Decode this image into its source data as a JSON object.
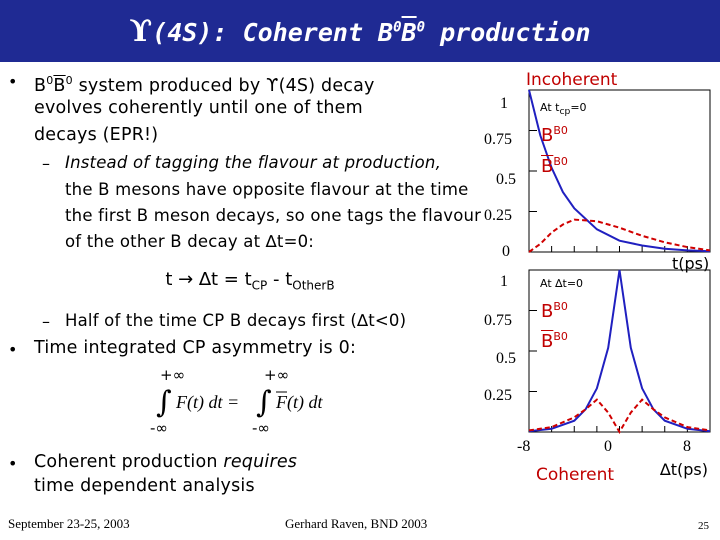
{
  "slide": {
    "title_prefix": "ϒ",
    "title_main": "(4S): Coherent B",
    "title_sup1": "0",
    "title_bbar": "B",
    "title_sup2": "0",
    "title_rest": " production"
  },
  "bullets": {
    "b1_line1_pre": "B",
    "b1_line1_sup1": "0",
    "b1_line1_bbar": "B",
    "b1_line1_sup2": "0",
    "b1_line1_rest": " system produced by ϒ(4S) decay",
    "b1_line2": "evolves coherently until one of them",
    "b1_line3": "decays (EPR!)",
    "sub1_line1": "Instead of tagging the flavour at production,",
    "sub1_line2": "the B mesons have opposite flavour at the time",
    "sub1_line3": "the first B meson decays, so one tags the flavour",
    "sub1_line4": "of the other  B decay at ∆t=0:",
    "equation": "t → ∆t = t",
    "eq_sub1": "CP",
    "eq_mid": " - t",
    "eq_sub2": "OtherB",
    "sub2": "Half of the time CP B decays first (∆t<0)",
    "b2": "Time integrated CP asymmetry is 0:",
    "int_upper1": "+∞",
    "int_upper2": "+∞",
    "int_lower1": "-∞",
    "int_lower2": "-∞",
    "b3_line1_pre": "Coherent production ",
    "b3_line1_em": "requires",
    "b3_line2": "time dependent analysis"
  },
  "footer": {
    "date": "September 23-25, 2003",
    "author": "Gerhard Raven, BND 2003",
    "page": "25"
  },
  "chart_data": [
    {
      "type": "line",
      "title": "Incoherent",
      "annotation": "At t",
      "annotation_sub": "cp",
      "annotation_rest": "=0",
      "xlabel": "t(ps)",
      "ylim": [
        0,
        1
      ],
      "yticks": [
        "1",
        "0.75",
        "0.5",
        "0.25",
        "0"
      ],
      "series": [
        {
          "name": "B0",
          "color": "#2020c0",
          "style": "solid",
          "x": [
            0,
            0.5,
            1,
            1.5,
            2,
            3,
            4,
            5,
            6,
            7,
            8
          ],
          "values": [
            1.0,
            0.72,
            0.52,
            0.37,
            0.27,
            0.14,
            0.07,
            0.04,
            0.02,
            0.01,
            0.005
          ]
        },
        {
          "name": "B0bar",
          "color": "#d00000",
          "style": "dashed",
          "x": [
            0,
            0.5,
            1,
            1.5,
            2,
            3,
            4,
            5,
            6,
            7,
            8
          ],
          "values": [
            0.0,
            0.05,
            0.12,
            0.17,
            0.2,
            0.19,
            0.15,
            0.1,
            0.06,
            0.03,
            0.01
          ]
        }
      ],
      "legend": [
        "B0",
        "B0"
      ]
    },
    {
      "type": "line",
      "annotation": "At ∆t=0",
      "xlabel": "∆t(ps)",
      "bottom_label": "Coherent",
      "xlim": [
        -8,
        8
      ],
      "xticks": [
        "-8",
        "0",
        "8"
      ],
      "ylim": [
        0,
        1
      ],
      "yticks": [
        "1",
        "0.75",
        "0.5",
        "0.25"
      ],
      "series": [
        {
          "name": "B0",
          "color": "#2020c0",
          "style": "solid",
          "x": [
            -8,
            -6,
            -4,
            -3,
            -2,
            -1,
            0,
            1,
            2,
            3,
            4,
            6,
            8
          ],
          "values": [
            0.005,
            0.02,
            0.07,
            0.14,
            0.27,
            0.52,
            1.0,
            0.52,
            0.27,
            0.14,
            0.07,
            0.02,
            0.005
          ]
        },
        {
          "name": "B0bar",
          "color": "#d00000",
          "style": "dashed",
          "x": [
            -8,
            -6,
            -4,
            -3,
            -2,
            -1,
            0,
            1,
            2,
            3,
            4,
            6,
            8
          ],
          "values": [
            0.01,
            0.03,
            0.09,
            0.14,
            0.2,
            0.12,
            0.0,
            0.12,
            0.2,
            0.14,
            0.09,
            0.03,
            0.01
          ]
        }
      ],
      "legend": [
        "B0",
        "B0"
      ]
    }
  ]
}
